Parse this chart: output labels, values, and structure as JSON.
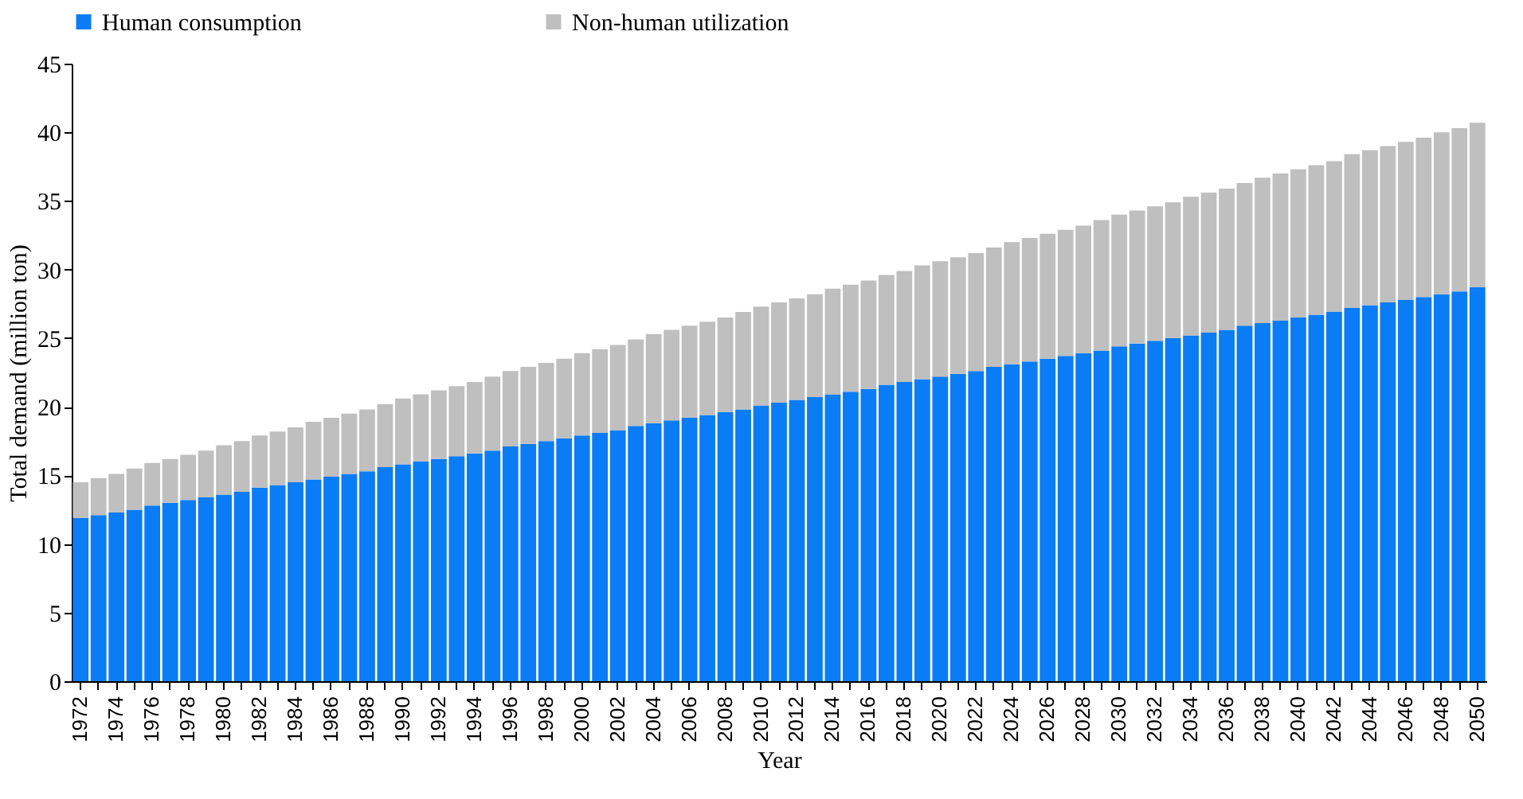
{
  "chart_data": {
    "type": "bar",
    "stacked": true,
    "xlabel": "Year",
    "ylabel": "Total demand (million ton)",
    "ylim": [
      0,
      45
    ],
    "yticks": [
      0,
      5,
      10,
      15,
      20,
      25,
      30,
      35,
      40,
      45
    ],
    "grid": false,
    "legend": "top",
    "categories": [
      "1972",
      null,
      "1974",
      null,
      "1976",
      null,
      "1978",
      null,
      "1980",
      null,
      "1982",
      null,
      "1984",
      null,
      "1986",
      null,
      "1988",
      null,
      "1990",
      null,
      "1992",
      null,
      "1994",
      null,
      "1996",
      null,
      "1998",
      null,
      "2000",
      null,
      "2002",
      null,
      "2004",
      null,
      "2006",
      null,
      "2008",
      null,
      "2010",
      null,
      "2012",
      null,
      "2014",
      null,
      "2016",
      null,
      "2018",
      null,
      "2020",
      null,
      "2022",
      null,
      "2024",
      null,
      "2026",
      null,
      "2028",
      null,
      "2030",
      null,
      "2032",
      null,
      "2034",
      null,
      "2036",
      null,
      "2038",
      null,
      "2040",
      null,
      "2042",
      null,
      "2044",
      null,
      "2046",
      null,
      "2048",
      null,
      "2050"
    ],
    "series": [
      {
        "name": "Human consumption",
        "color": "#0a7cf5",
        "values": [
          11.9,
          12.1,
          12.3,
          12.5,
          12.8,
          13.0,
          13.2,
          13.4,
          13.6,
          13.8,
          14.1,
          14.3,
          14.5,
          14.7,
          14.9,
          15.1,
          15.3,
          15.6,
          15.8,
          16.0,
          16.2,
          16.4,
          16.6,
          16.8,
          17.1,
          17.3,
          17.5,
          17.7,
          17.9,
          18.1,
          18.3,
          18.6,
          18.8,
          19.0,
          19.2,
          19.4,
          19.6,
          19.8,
          20.1,
          20.3,
          20.5,
          20.7,
          20.9,
          21.1,
          21.3,
          21.6,
          21.8,
          22.0,
          22.2,
          22.4,
          22.6,
          22.9,
          23.1,
          23.3,
          23.5,
          23.7,
          23.9,
          24.1,
          24.4,
          24.6,
          24.8,
          25.0,
          25.2,
          25.4,
          25.6,
          25.9,
          26.1,
          26.3,
          26.5,
          26.7,
          26.9,
          27.2,
          27.4,
          27.6,
          27.8,
          28.0,
          28.2,
          28.4,
          28.7
        ]
      },
      {
        "name": "Non-human utilization",
        "color": "#bfbfbf",
        "values": [
          2.6,
          2.7,
          2.8,
          3.0,
          3.1,
          3.2,
          3.3,
          3.4,
          3.6,
          3.7,
          3.8,
          3.9,
          4.0,
          4.2,
          4.3,
          4.4,
          4.5,
          4.6,
          4.8,
          4.9,
          5.0,
          5.1,
          5.2,
          5.4,
          5.5,
          5.6,
          5.7,
          5.8,
          6.0,
          6.1,
          6.2,
          6.3,
          6.5,
          6.6,
          6.7,
          6.8,
          6.9,
          7.1,
          7.2,
          7.3,
          7.4,
          7.5,
          7.7,
          7.8,
          7.9,
          8.0,
          8.1,
          8.3,
          8.4,
          8.5,
          8.6,
          8.7,
          8.9,
          9.0,
          9.1,
          9.2,
          9.3,
          9.5,
          9.6,
          9.7,
          9.8,
          9.9,
          10.1,
          10.2,
          10.3,
          10.4,
          10.6,
          10.7,
          10.8,
          10.9,
          11.0,
          11.2,
          11.3,
          11.4,
          11.5,
          11.6,
          11.8,
          11.9,
          12.0
        ]
      }
    ]
  }
}
